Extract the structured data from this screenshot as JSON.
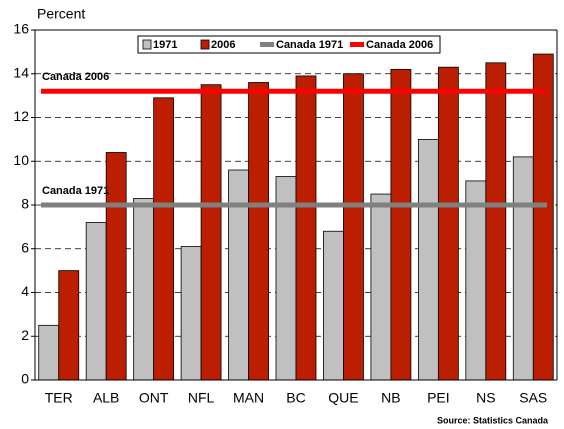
{
  "chart_data": {
    "type": "bar",
    "y_label": "Percent",
    "source": "Source:  Statistics Canada",
    "categories": [
      "TER",
      "ALB",
      "ONT",
      "NFL",
      "MAN",
      "BC",
      "QUE",
      "NB",
      "PEI",
      "NS",
      "SAS"
    ],
    "series": [
      {
        "name": "1971",
        "color": "#c0c0c0",
        "values": [
          2.5,
          7.2,
          8.3,
          6.1,
          9.6,
          9.3,
          6.8,
          8.5,
          11.0,
          9.1,
          10.2
        ]
      },
      {
        "name": "2006",
        "color": "#bb1e00",
        "values": [
          5.0,
          10.4,
          12.9,
          13.5,
          13.6,
          13.9,
          14.0,
          14.2,
          14.3,
          14.5,
          14.9
        ]
      },
      {
        "name": "Canada 1971",
        "color": "#808080",
        "type": "line",
        "values": [
          8,
          8,
          8,
          8,
          8,
          8,
          8,
          8,
          8,
          8,
          8
        ]
      },
      {
        "name": "Canada 2006",
        "color": "#ff0000",
        "type": "line",
        "values": [
          13.2,
          13.2,
          13.2,
          13.2,
          13.2,
          13.2,
          13.2,
          13.2,
          13.2,
          13.2,
          13.2
        ]
      }
    ],
    "annotations": [
      "Canada 1971",
      "Canada 2006"
    ],
    "ylim": [
      0,
      16
    ],
    "yticks": [
      0,
      2,
      4,
      6,
      8,
      10,
      12,
      14,
      16
    ],
    "grid": true
  }
}
